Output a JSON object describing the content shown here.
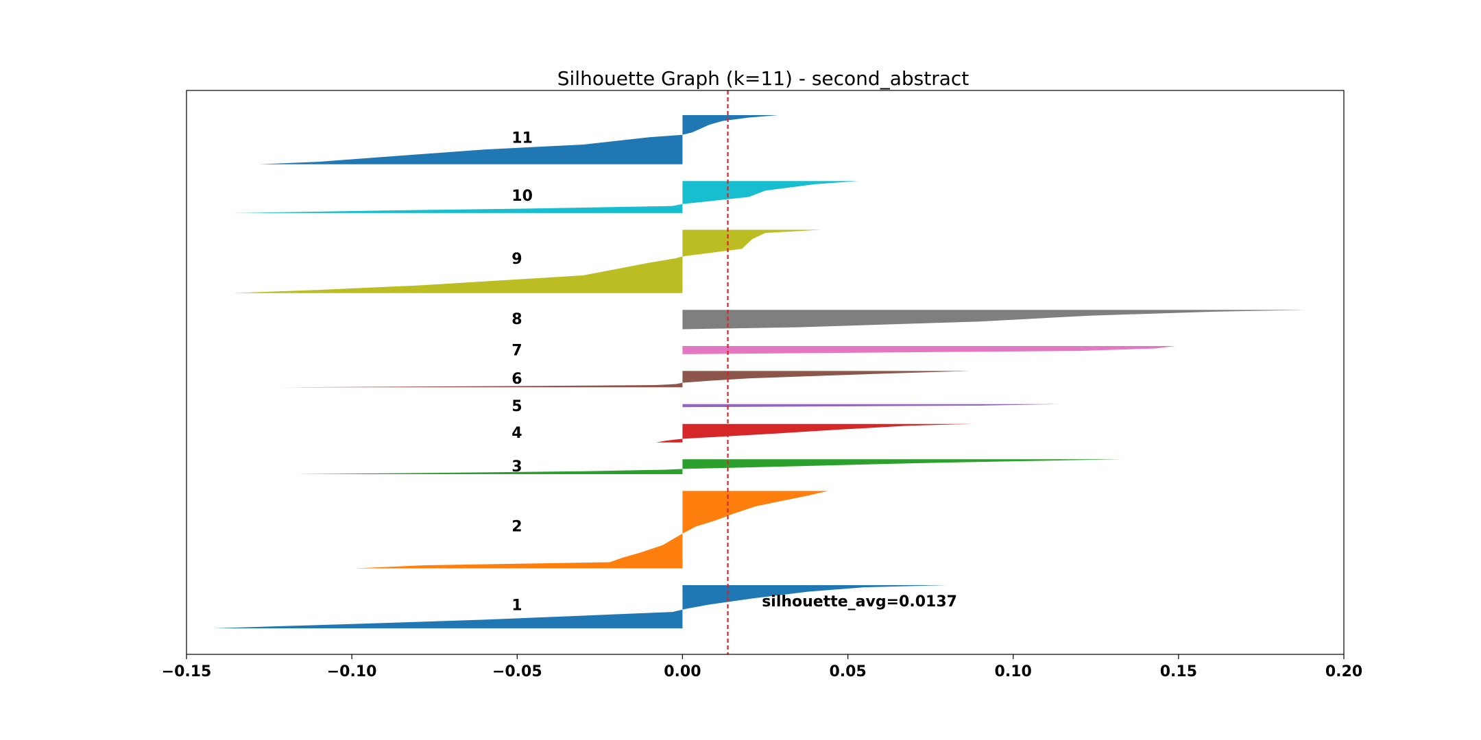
{
  "chart_data": {
    "type": "area",
    "title": "Silhouette Graph (k=11) - second_abstract",
    "xlabel": "",
    "ylabel": "",
    "xlim": [
      -0.15,
      0.2
    ],
    "xticks": [
      -0.15,
      -0.1,
      -0.05,
      0.0,
      0.05,
      0.1,
      0.15,
      0.2
    ],
    "xtick_labels": [
      "−0.15",
      "−0.10",
      "−0.05",
      "0.00",
      "0.05",
      "0.10",
      "0.15",
      "0.20"
    ],
    "grid": false,
    "legend": "none",
    "silhouette_avg": 0.0137,
    "avg_label": "silhouette_avg=0.0137",
    "avg_line_color": "#d62728",
    "clusters": [
      {
        "label": "1",
        "color": "#1f77b4",
        "size": 58,
        "max": 0.08,
        "min": -0.142,
        "profile": [
          [
            0,
            0.08
          ],
          [
            0.05,
            0.055
          ],
          [
            0.15,
            0.038
          ],
          [
            0.3,
            0.022
          ],
          [
            0.45,
            0.008
          ],
          [
            0.55,
            0.001
          ],
          [
            0.62,
            -0.003
          ],
          [
            0.7,
            -0.028
          ],
          [
            0.8,
            -0.06
          ],
          [
            0.9,
            -0.1
          ],
          [
            1,
            -0.142
          ]
        ]
      },
      {
        "label": "2",
        "color": "#ff7f0e",
        "size": 104,
        "max": 0.044,
        "min": -0.099,
        "profile": [
          [
            0,
            0.044
          ],
          [
            0.06,
            0.038
          ],
          [
            0.12,
            0.031
          ],
          [
            0.2,
            0.022
          ],
          [
            0.3,
            0.015
          ],
          [
            0.38,
            0.01
          ],
          [
            0.46,
            0.004
          ],
          [
            0.55,
            0.0
          ],
          [
            0.6,
            -0.002
          ],
          [
            0.7,
            -0.006
          ],
          [
            0.8,
            -0.013
          ],
          [
            0.86,
            -0.018
          ],
          [
            0.92,
            -0.022
          ],
          [
            0.96,
            -0.078
          ],
          [
            1,
            -0.099
          ]
        ]
      },
      {
        "label": "3",
        "color": "#2ca02c",
        "size": 20,
        "max": 0.133,
        "min": -0.117,
        "profile": [
          [
            0,
            0.133
          ],
          [
            0.25,
            0.073
          ],
          [
            0.45,
            0.037
          ],
          [
            0.6,
            0.01
          ],
          [
            0.65,
            0.0
          ],
          [
            0.7,
            -0.005
          ],
          [
            0.8,
            -0.03
          ],
          [
            0.9,
            -0.07
          ],
          [
            1,
            -0.117
          ]
        ]
      },
      {
        "label": "4",
        "color": "#d62728",
        "size": 25,
        "max": 0.088,
        "min": -0.008,
        "profile": [
          [
            0,
            0.088
          ],
          [
            0.1,
            0.068
          ],
          [
            0.3,
            0.048
          ],
          [
            0.5,
            0.03
          ],
          [
            0.7,
            0.01
          ],
          [
            0.8,
            0.0
          ],
          [
            0.9,
            -0.005
          ],
          [
            1,
            -0.008
          ]
        ]
      },
      {
        "label": "5",
        "color": "#9467bd",
        "size": 4,
        "max": 0.114,
        "min": 0.0,
        "profile": [
          [
            0,
            0.114
          ],
          [
            0.5,
            0.09
          ],
          [
            1,
            0.0
          ]
        ]
      },
      {
        "label": "6",
        "color": "#8c564b",
        "size": 22,
        "max": 0.087,
        "min": -0.122,
        "profile": [
          [
            0,
            0.087
          ],
          [
            0.2,
            0.055
          ],
          [
            0.45,
            0.02
          ],
          [
            0.6,
            0.008
          ],
          [
            0.72,
            0.0
          ],
          [
            0.8,
            -0.002
          ],
          [
            0.86,
            -0.008
          ],
          [
            0.92,
            -0.05
          ],
          [
            1,
            -0.122
          ]
        ]
      },
      {
        "label": "7",
        "color": "#e377c2",
        "size": 11,
        "max": 0.149,
        "min": 0.0,
        "profile": [
          [
            0,
            0.149
          ],
          [
            0.3,
            0.143
          ],
          [
            0.6,
            0.12
          ],
          [
            1,
            0.0
          ]
        ]
      },
      {
        "label": "8",
        "color": "#7f7f7f",
        "size": 26,
        "max": 0.189,
        "min": 0.0,
        "profile": [
          [
            0,
            0.189
          ],
          [
            0.1,
            0.16
          ],
          [
            0.3,
            0.123
          ],
          [
            0.6,
            0.09
          ],
          [
            0.9,
            0.035
          ],
          [
            1,
            0.0
          ]
        ]
      },
      {
        "label": "9",
        "color": "#bcbd22",
        "size": 85,
        "max": 0.042,
        "min": -0.136,
        "profile": [
          [
            0,
            0.042
          ],
          [
            0.05,
            0.025
          ],
          [
            0.15,
            0.021
          ],
          [
            0.3,
            0.018
          ],
          [
            0.42,
            0.0
          ],
          [
            0.45,
            -0.002
          ],
          [
            0.52,
            -0.01
          ],
          [
            0.62,
            -0.02
          ],
          [
            0.72,
            -0.03
          ],
          [
            0.8,
            -0.055
          ],
          [
            0.88,
            -0.08
          ],
          [
            0.95,
            -0.11
          ],
          [
            1,
            -0.136
          ]
        ]
      },
      {
        "label": "10",
        "color": "#17becf",
        "size": 43,
        "max": 0.053,
        "min": -0.136,
        "profile": [
          [
            0,
            0.053
          ],
          [
            0.1,
            0.04
          ],
          [
            0.3,
            0.025
          ],
          [
            0.5,
            0.02
          ],
          [
            0.72,
            0.0
          ],
          [
            0.78,
            -0.003
          ],
          [
            0.85,
            -0.04
          ],
          [
            0.92,
            -0.09
          ],
          [
            1,
            -0.136
          ]
        ]
      },
      {
        "label": "11",
        "color": "#1f77b4",
        "size": 66,
        "max": 0.029,
        "min": -0.128,
        "profile": [
          [
            0,
            0.029
          ],
          [
            0.05,
            0.02
          ],
          [
            0.12,
            0.012
          ],
          [
            0.2,
            0.008
          ],
          [
            0.35,
            0.003
          ],
          [
            0.4,
            0.0
          ],
          [
            0.45,
            -0.01
          ],
          [
            0.6,
            -0.03
          ],
          [
            0.7,
            -0.06
          ],
          [
            0.85,
            -0.09
          ],
          [
            0.95,
            -0.11
          ],
          [
            1,
            -0.128
          ]
        ]
      }
    ]
  }
}
